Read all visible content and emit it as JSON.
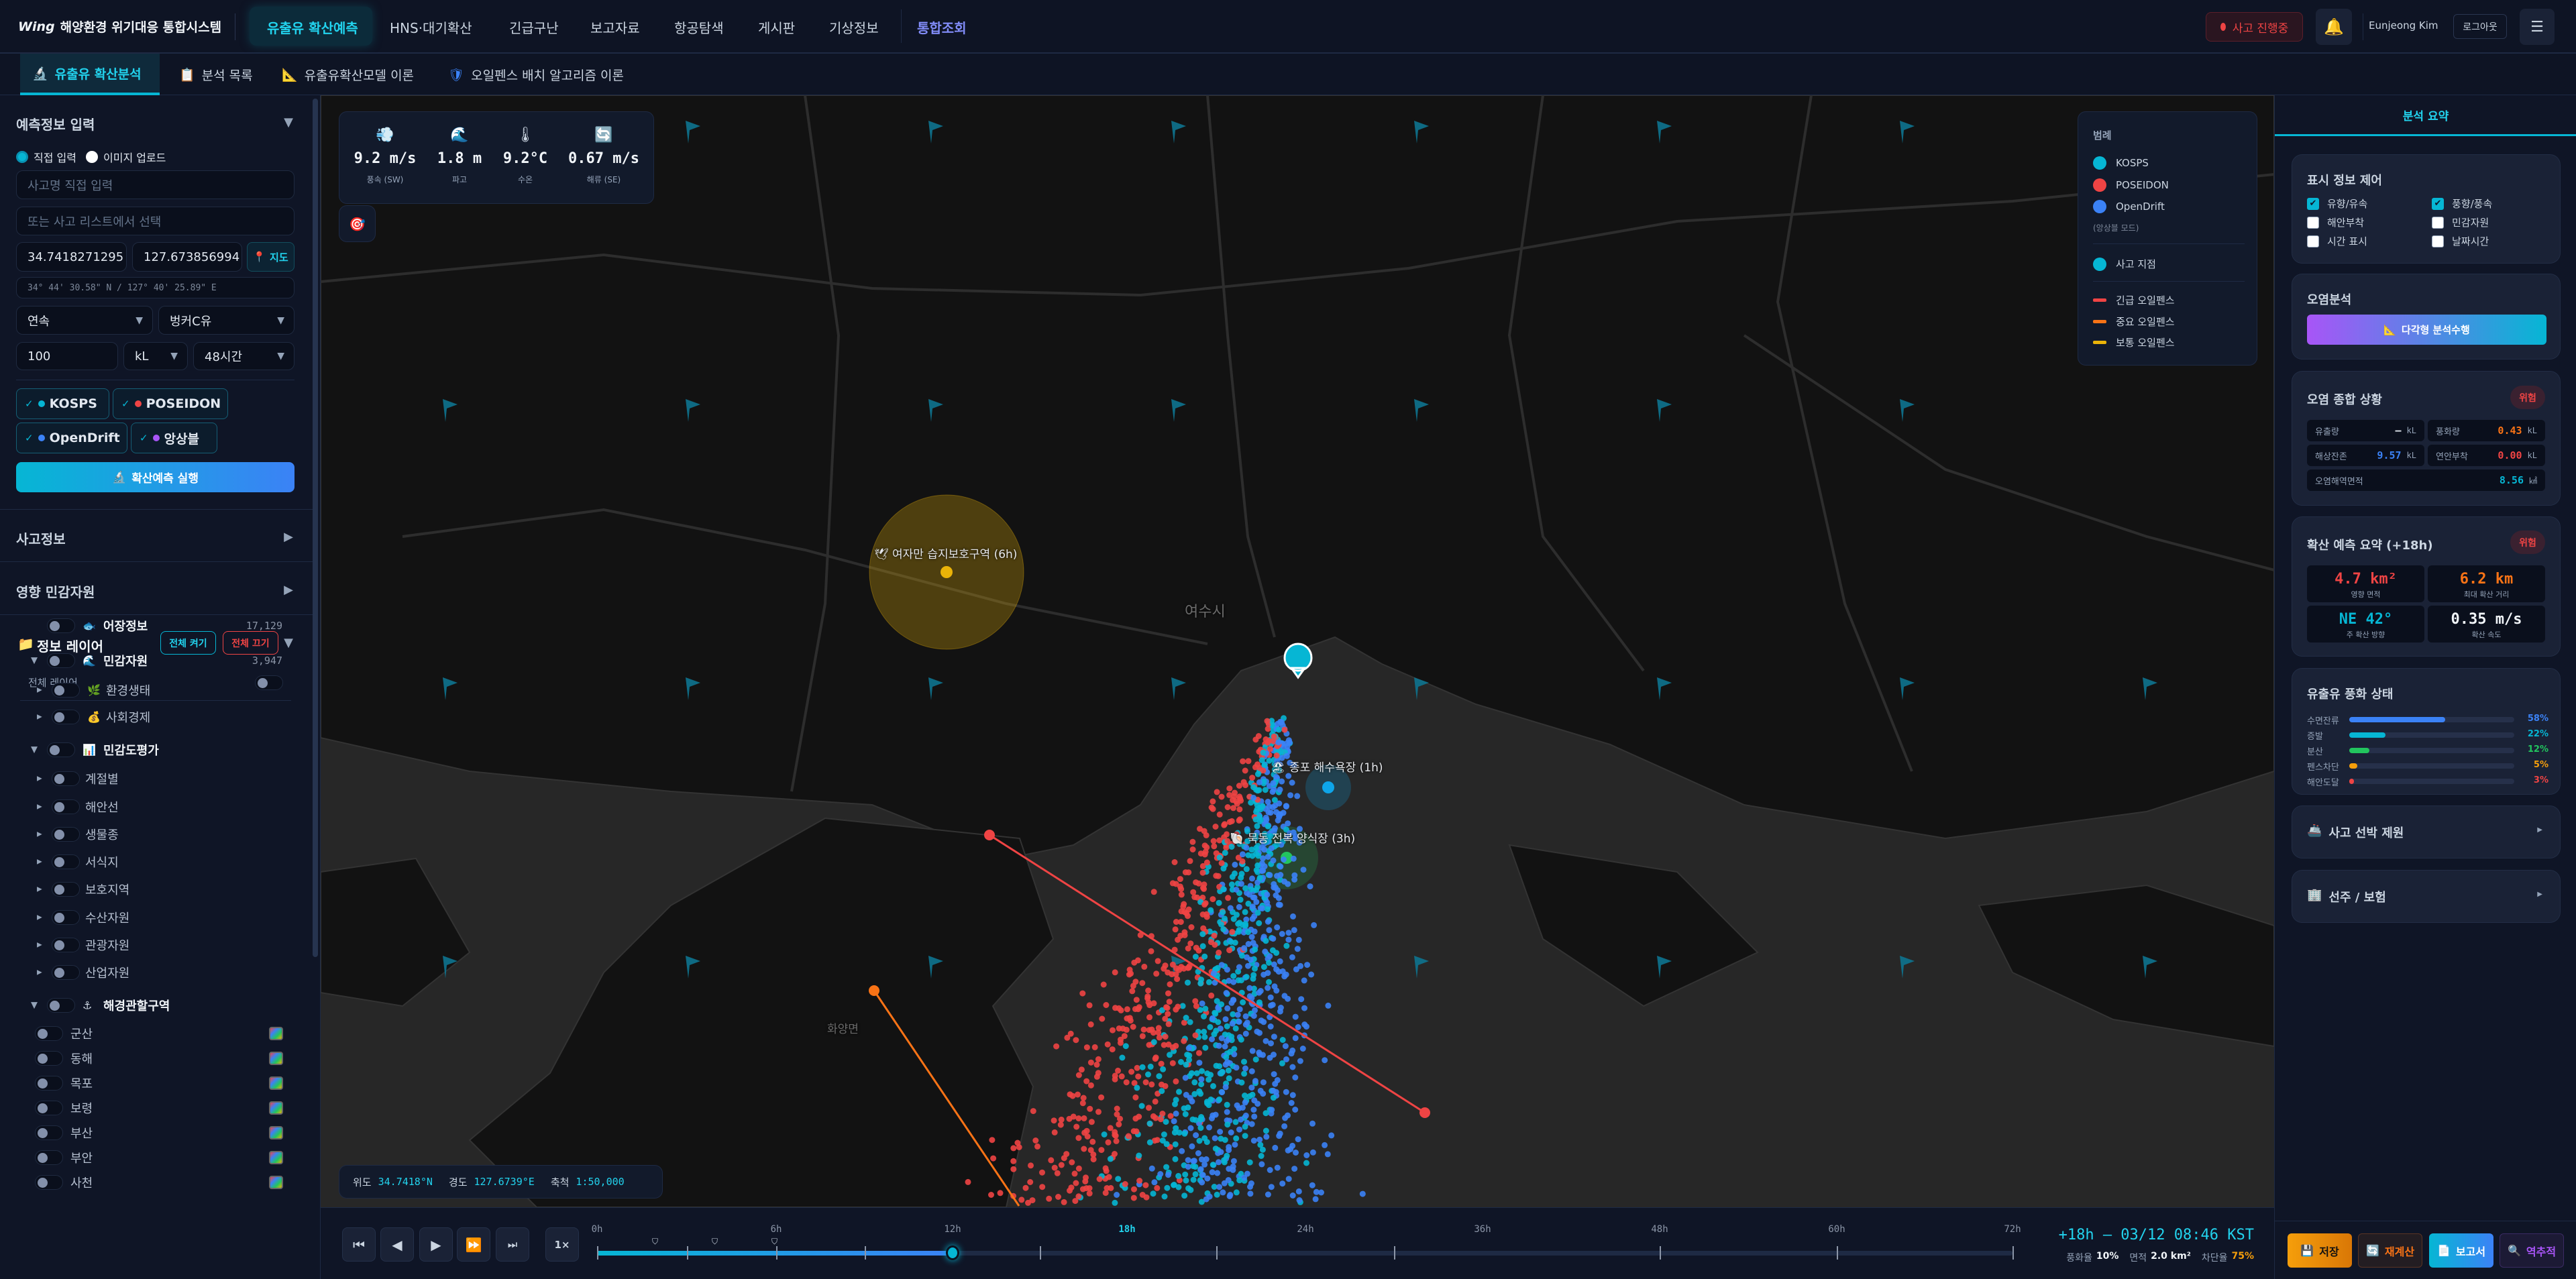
{
  "header": {
    "logo": "Wing",
    "app_title": "해양환경 위기대응 통합시스템",
    "nav": [
      "유출유 확산예측",
      "HNS·대기확산",
      "긴급구난",
      "보고자료",
      "항공탐색",
      "게시판",
      "기상정보",
      "통합조회"
    ],
    "active_nav": "유출유 확산예측",
    "incident_badge": "사고 진행중",
    "user_name": "Eunjeong Kim",
    "logout": "로그아웃",
    "bell_icon": "bell-icon",
    "menu_icon": "hamburger-icon"
  },
  "subtabs": [
    {
      "label": "유출유 확산분석",
      "icon": "microscope-icon",
      "active": true
    },
    {
      "label": "분석 목록",
      "icon": "clipboard-icon"
    },
    {
      "label": "유출유확산모델 이론",
      "icon": "triangle-ruler-icon"
    },
    {
      "label": "오일펜스 배치 알고리즘 이론",
      "icon": "shield-icon"
    }
  ],
  "left": {
    "input_section": {
      "title": "예측정보 입력",
      "radio": [
        {
          "label": "직접 입력",
          "selected": true
        },
        {
          "label": "이미지 업로드",
          "selected": false
        }
      ],
      "incident_name_placeholder": "사고명 직접 입력",
      "incident_list_placeholder": "또는 사고 리스트에서 선택",
      "lat": "34.7418271295",
      "lon": "127.673856994",
      "map_button": "지도",
      "dms": "34° 44' 30.58\" N / 127° 40' 25.89\" E",
      "release_type": "연속",
      "oil_type": "벙커C유",
      "amount": "100",
      "unit": "kL",
      "duration": "48시간",
      "models": [
        {
          "label": "KOSPS",
          "color": "#06b6d4",
          "checked": true
        },
        {
          "label": "POSEIDON",
          "color": "#ef4444",
          "checked": true
        },
        {
          "label": "OpenDrift",
          "color": "#3b82f6",
          "checked": true
        },
        {
          "label": "앙상블",
          "color": "#a855f7",
          "checked": true
        }
      ],
      "run_button": "확산예측 실행"
    },
    "incident_info": "사고정보",
    "affected_resources": "영향 민감자원",
    "layers": {
      "title": "정보 레이어",
      "all_on": "전체 켜기",
      "all_off": "전체 끄기",
      "all_layers": "전체 레이어",
      "tree": [
        {
          "label": "어장정보",
          "level": 0,
          "icon": "🐟",
          "count": "17,129",
          "expander": ""
        },
        {
          "label": "민감자원",
          "level": 0,
          "icon": "🌊",
          "count": "3,947",
          "expander": "▼"
        },
        {
          "label": "환경생태",
          "level": 1,
          "icon": "🌿",
          "expander": "▶"
        },
        {
          "label": "사회경제",
          "level": 1,
          "icon": "💰",
          "expander": "▶"
        },
        {
          "label": "민감도평가",
          "level": 0,
          "icon": "📊",
          "expander": "▼"
        },
        {
          "label": "계절별",
          "level": 2,
          "expander": "▶"
        },
        {
          "label": "해안선",
          "level": 2,
          "expander": "▶"
        },
        {
          "label": "생물종",
          "level": 2,
          "expander": "▶"
        },
        {
          "label": "서식지",
          "level": 2,
          "expander": "▶"
        },
        {
          "label": "보호지역",
          "level": 2,
          "expander": "▶"
        },
        {
          "label": "수산자원",
          "level": 2,
          "expander": "▶"
        },
        {
          "label": "관광자원",
          "level": 2,
          "expander": "▶"
        },
        {
          "label": "산업자원",
          "level": 2,
          "expander": "▶"
        },
        {
          "label": "해경관할구역",
          "level": 0,
          "icon": "⚓",
          "expander": "▼"
        }
      ],
      "districts": [
        "군산",
        "동해",
        "목포",
        "보령",
        "부산",
        "부안",
        "사천"
      ]
    }
  },
  "map": {
    "weather": [
      {
        "value": "9.2 m/s",
        "label": "풍속 (SW)",
        "icon": "wind-icon"
      },
      {
        "value": "1.8 m",
        "label": "파고",
        "icon": "wave-icon"
      },
      {
        "value": "9.2°C",
        "label": "수온",
        "icon": "thermometer-icon"
      },
      {
        "value": "0.67 m/s",
        "label": "해류 (SE)",
        "icon": "current-cycle-icon"
      }
    ],
    "legend": {
      "title": "범례",
      "models": [
        {
          "label": "KOSPS",
          "color": "#06b6d4"
        },
        {
          "label": "POSEIDON",
          "color": "#ef4444"
        },
        {
          "label": "OpenDrift",
          "color": "#3b82f6"
        }
      ],
      "ensemble_note": "(앙상블 모드)",
      "incident_point": {
        "label": "사고 지점",
        "color": "#06b6d4"
      },
      "fences": [
        {
          "label": "긴급 오일펜스",
          "color": "#ef4444"
        },
        {
          "label": "중요 오일펜스",
          "color": "#f97316"
        },
        {
          "label": "보통 오일펜스",
          "color": "#eab308"
        }
      ]
    },
    "place_labels": [
      "여수시",
      "화양면"
    ],
    "resources": [
      {
        "label": "여자만 습지보호구역 (6h)",
        "icon": "bird-icon",
        "color": "#eab308"
      },
      {
        "label": "종포 해수욕장 (1h)",
        "icon": "beach-icon",
        "color": "#0ea5e9"
      },
      {
        "label": "묵동 전복 양식장 (3h)",
        "icon": "shell-icon",
        "color": "#22c55e"
      }
    ],
    "coords": {
      "lat_label": "위도",
      "lat": "34.7418°N",
      "lon_label": "경도",
      "lon": "127.6739°E",
      "scale_label": "축척",
      "scale": "1:50,000"
    }
  },
  "timeline": {
    "speed": "1×",
    "ticks": [
      "0h",
      "6h",
      "12h",
      "18h",
      "24h",
      "36h",
      "48h",
      "60h",
      "72h"
    ],
    "highlight_tick": "18h",
    "slider_position_hour": 12,
    "current": "+18h — 03/12 08:46 KST",
    "stats": {
      "weathering_label": "풍화율",
      "weathering": "10%",
      "area_label": "면적",
      "area": "2.0 km²",
      "block_label": "차단율",
      "block": "75%"
    }
  },
  "right": {
    "tab": "분석 요약",
    "display_control": {
      "title": "표시 정보 제어",
      "options": [
        {
          "label": "유향/유속",
          "checked": true
        },
        {
          "label": "풍향/풍속",
          "checked": true
        },
        {
          "label": "해안부착",
          "checked": false
        },
        {
          "label": "민감자원",
          "checked": false
        },
        {
          "label": "시간 표시",
          "checked": false
        },
        {
          "label": "날짜시간",
          "checked": false
        }
      ]
    },
    "pollution_analysis": {
      "title": "오염분석",
      "button": "다각형 분석수행"
    },
    "pollution_status": {
      "title": "오염 종합 상황",
      "badge": "위험",
      "items": [
        {
          "label": "유출량",
          "value": "—",
          "unit": "kL",
          "color": "#e2e8f0"
        },
        {
          "label": "풍화량",
          "value": "0.43",
          "unit": "kL",
          "color": "#f97316"
        },
        {
          "label": "해상잔존",
          "value": "9.57",
          "unit": "kL",
          "color": "#3b82f6"
        },
        {
          "label": "연안부착",
          "value": "0.00",
          "unit": "kL",
          "color": "#ef4444"
        },
        {
          "label": "오염해역면적",
          "value": "8.56",
          "unit": "㎢",
          "color": "#06b6d4"
        }
      ]
    },
    "spread_summary": {
      "title": "확산 예측 요약 (+18h)",
      "badge": "위험",
      "items": [
        {
          "value": "4.7 km²",
          "label": "영향 면적",
          "color": "#ef4444"
        },
        {
          "value": "6.2 km",
          "label": "최대 확산 거리",
          "color": "#f97316"
        },
        {
          "value": "NE 42°",
          "label": "주 확산 방향",
          "color": "#06b6d4"
        },
        {
          "value": "0.35 m/s",
          "label": "확산 속도",
          "color": "#f1f5f9"
        }
      ]
    },
    "weathering": {
      "title": "유출유 풍화 상태",
      "bars": [
        {
          "label": "수면잔류",
          "pct": 58,
          "text": "58%",
          "color": "#3b82f6"
        },
        {
          "label": "증발",
          "pct": 22,
          "text": "22%",
          "color": "#06b6d4"
        },
        {
          "label": "분산",
          "pct": 12,
          "text": "12%",
          "color": "#22c55e"
        },
        {
          "label": "펜스차단",
          "pct": 5,
          "text": "5%",
          "color": "#f59e0b"
        },
        {
          "label": "해안도달",
          "pct": 3,
          "text": "3%",
          "color": "#ef4444"
        }
      ]
    },
    "vessel_info": "사고 선박 제원",
    "owner_insurance": "선주 / 보험",
    "actions": [
      "저장",
      "재계산",
      "보고서",
      "역추적"
    ]
  }
}
